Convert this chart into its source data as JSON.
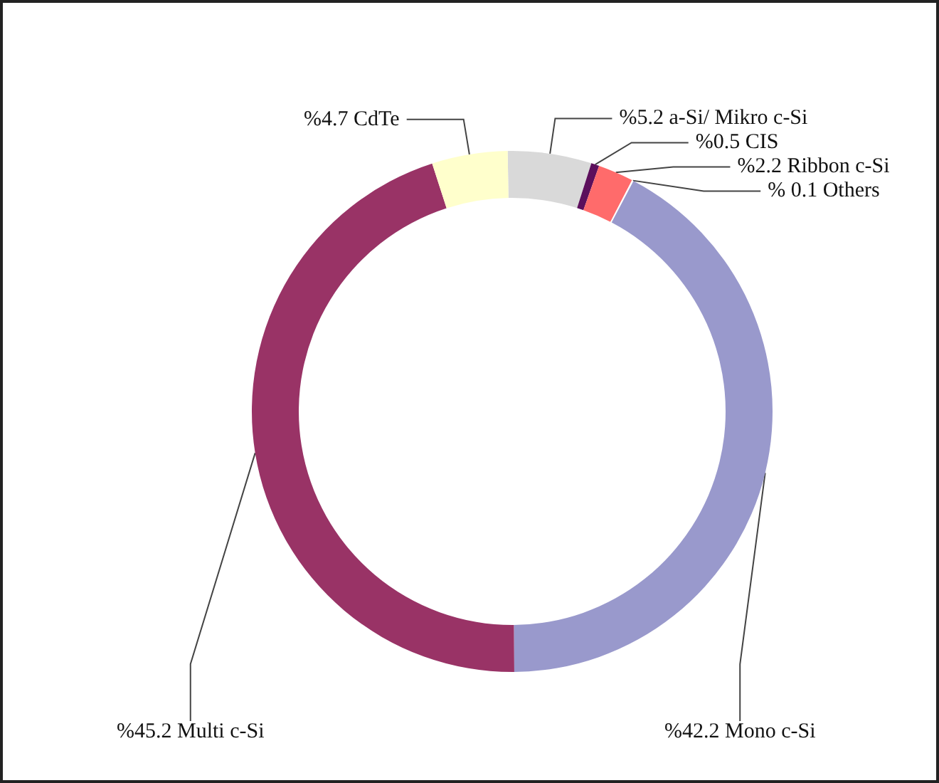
{
  "chart_data": {
    "type": "donut",
    "categories": [
      "a-Si/ Mikro c-Si",
      "CIS",
      "Ribbon c-Si",
      "Others",
      "Mono c-Si",
      "Multi c-Si",
      "CdTe"
    ],
    "values": [
      5.2,
      0.5,
      2.2,
      0.1,
      42.2,
      45.2,
      4.7
    ],
    "value_labels": [
      "%5.2",
      "%0.5",
      "%2.2",
      "% 0.1",
      "%42.2",
      "%45.2",
      "%4.7"
    ],
    "colors": [
      "#d9d9d9",
      "#5c0f5c",
      "#ff6b6b",
      "#ffffff",
      "#9999cc",
      "#993366",
      "#ffffcc"
    ],
    "legend": false
  }
}
